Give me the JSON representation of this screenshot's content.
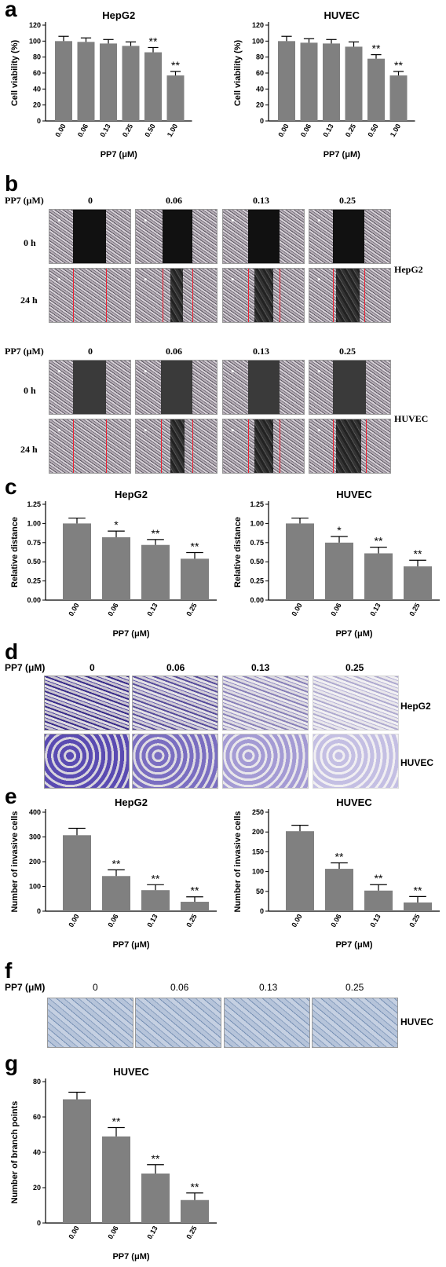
{
  "panels": {
    "a": "a",
    "b": "b",
    "c": "c",
    "d": "d",
    "e": "e",
    "f": "f",
    "g": "g"
  },
  "wound": {
    "pp7_label": "PP7 (μM)",
    "concentrations": [
      "0",
      "0.06",
      "0.13",
      "0.25"
    ],
    "rows": [
      "0 h",
      "24 h"
    ],
    "cell_lines": [
      "HepG2",
      "HUVEC"
    ]
  },
  "invasion": {
    "pp7_label": "PP7 (μM)",
    "concentrations": [
      "0",
      "0.06",
      "0.13",
      "0.25"
    ],
    "cell_lines": [
      "HepG2",
      "HUVEC"
    ]
  },
  "tube": {
    "pp7_label": "PP7 (μM)",
    "concentrations": [
      "0",
      "0.06",
      "0.13",
      "0.25"
    ],
    "cell_line": "HUVEC"
  },
  "colors": {
    "bar": "#808080",
    "scratch_line": "#e02030"
  },
  "chart_data": [
    {
      "id": "a1",
      "type": "bar",
      "title": "HepG2",
      "xlabel": "PP7 (μM)",
      "ylabel": "Cell viability (%)",
      "categories": [
        "0.00",
        "0.06",
        "0.13",
        "0.25",
        "0.50",
        "1.00"
      ],
      "values": [
        100,
        99,
        97,
        94,
        86,
        57
      ],
      "errors": [
        6,
        5,
        5,
        5,
        6,
        5
      ],
      "significance": [
        "",
        "",
        "",
        "",
        "**",
        "**"
      ],
      "ylim": [
        0,
        120
      ],
      "yticks": [
        0,
        20,
        40,
        60,
        80,
        100,
        120
      ]
    },
    {
      "id": "a2",
      "type": "bar",
      "title": "HUVEC",
      "xlabel": "PP7 (μM)",
      "ylabel": "Cell viability (%)",
      "categories": [
        "0.00",
        "0.06",
        "0.13",
        "0.25",
        "0.50",
        "1.00"
      ],
      "values": [
        100,
        98,
        97,
        93,
        78,
        57
      ],
      "errors": [
        6,
        5,
        5,
        6,
        5,
        5
      ],
      "significance": [
        "",
        "",
        "",
        "",
        "**",
        "**"
      ],
      "ylim": [
        0,
        120
      ],
      "yticks": [
        0,
        20,
        40,
        60,
        80,
        100,
        120
      ]
    },
    {
      "id": "c1",
      "type": "bar",
      "title": "HepG2",
      "xlabel": "PP7 (μM)",
      "ylabel": "Relative distance",
      "categories": [
        "0.00",
        "0.06",
        "0.13",
        "0.25"
      ],
      "values": [
        1.0,
        0.82,
        0.72,
        0.54
      ],
      "errors": [
        0.07,
        0.08,
        0.07,
        0.08
      ],
      "significance": [
        "",
        "*",
        "**",
        "**"
      ],
      "ylim": [
        0,
        1.25
      ],
      "yticks": [
        "0.00",
        "0.25",
        "0.50",
        "0.75",
        "1.00",
        "1.25"
      ]
    },
    {
      "id": "c2",
      "type": "bar",
      "title": "HUVEC",
      "xlabel": "PP7 (μM)",
      "ylabel": "Relative distance",
      "categories": [
        "0.00",
        "0.06",
        "0.13",
        "0.25"
      ],
      "values": [
        1.0,
        0.75,
        0.61,
        0.44
      ],
      "errors": [
        0.07,
        0.08,
        0.08,
        0.08
      ],
      "significance": [
        "",
        "*",
        "**",
        "**"
      ],
      "ylim": [
        0,
        1.25
      ],
      "yticks": [
        "0.00",
        "0.25",
        "0.50",
        "0.75",
        "1.00",
        "1.25"
      ]
    },
    {
      "id": "e1",
      "type": "bar",
      "title": "HepG2",
      "xlabel": "PP7 (μM)",
      "ylabel": "Number of invasive cells",
      "categories": [
        "0.00",
        "0.06",
        "0.13",
        "0.25"
      ],
      "values": [
        307,
        142,
        85,
        38
      ],
      "errors": [
        28,
        25,
        22,
        20
      ],
      "significance": [
        "",
        "**",
        "**",
        "**"
      ],
      "ylim": [
        0,
        400
      ],
      "yticks": [
        0,
        100,
        200,
        300,
        400
      ]
    },
    {
      "id": "e2",
      "type": "bar",
      "title": "HUVEC",
      "xlabel": "PP7 (μM)",
      "ylabel": "Number of invasive cells",
      "categories": [
        "0.00",
        "0.06",
        "0.13",
        "0.25"
      ],
      "values": [
        202,
        107,
        52,
        22
      ],
      "errors": [
        15,
        15,
        15,
        15
      ],
      "significance": [
        "",
        "**",
        "**",
        "**"
      ],
      "ylim": [
        0,
        250
      ],
      "yticks": [
        0,
        50,
        100,
        150,
        200,
        250
      ]
    },
    {
      "id": "g1",
      "type": "bar",
      "title": "HUVEC",
      "xlabel": "PP7 (μM)",
      "ylabel": "Number of branch points",
      "categories": [
        "0.00",
        "0.06",
        "0.13",
        "0.25"
      ],
      "values": [
        70,
        49,
        28,
        13
      ],
      "errors": [
        4,
        5,
        5,
        4
      ],
      "significance": [
        "",
        "**",
        "**",
        "**"
      ],
      "ylim": [
        0,
        80
      ],
      "yticks": [
        0,
        20,
        40,
        60,
        80
      ]
    }
  ]
}
